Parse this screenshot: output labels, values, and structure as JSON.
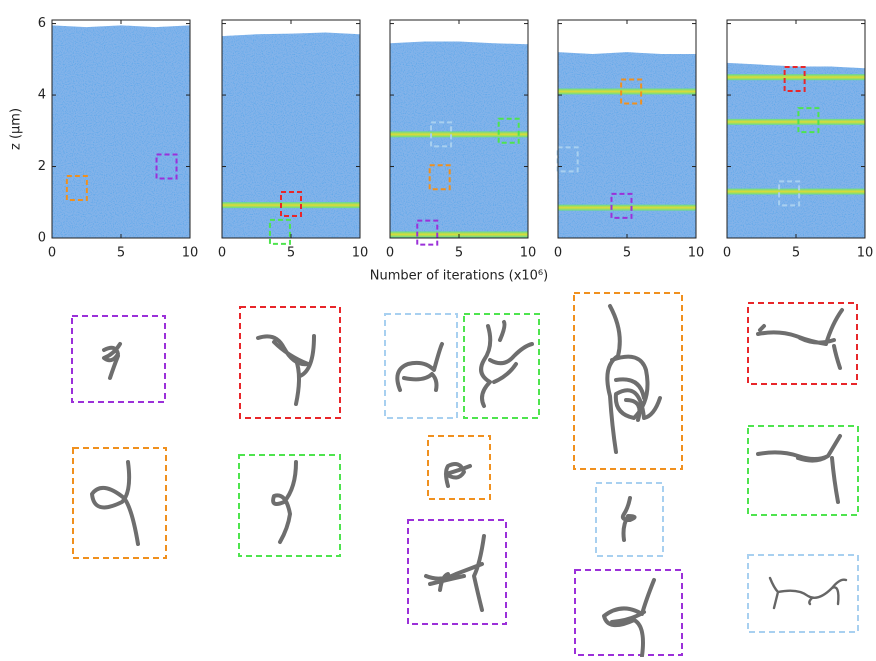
{
  "chart_data": [
    {
      "type": "area",
      "ylabel": "z (μm)",
      "x": [
        0,
        2.5,
        5,
        7.5,
        10
      ],
      "values": [
        5.95,
        5.9,
        5.95,
        5.9,
        5.95
      ],
      "color": "#1e74d8",
      "xlim": [
        0,
        10
      ],
      "ylim": [
        0,
        6.1
      ],
      "xticks": [
        0,
        5,
        10
      ],
      "yticks": [
        0,
        2,
        4,
        6
      ],
      "bands": [],
      "boxes": [
        {
          "x": 1.8,
          "y": 1.4,
          "color": "#f0901e"
        },
        {
          "x": 8.3,
          "y": 2.0,
          "color": "#9b30d9"
        }
      ]
    },
    {
      "type": "area",
      "x": [
        0,
        2.5,
        5,
        7.5,
        10
      ],
      "values": [
        5.65,
        5.7,
        5.72,
        5.75,
        5.7
      ],
      "color": "#1e74d8",
      "xlim": [
        0,
        10
      ],
      "ylim": [
        0,
        6.1
      ],
      "xticks": [
        0,
        5,
        10
      ],
      "yticks": [
        0,
        2,
        4,
        6
      ],
      "bands": [
        0.92
      ],
      "boxes": [
        {
          "x": 5.0,
          "y": 0.95,
          "color": "#e8262a"
        },
        {
          "x": 4.2,
          "y": 0.17,
          "color": "#4ee44e"
        }
      ]
    },
    {
      "type": "area",
      "xlabel": "Number of iterations (x10⁶)",
      "x": [
        0,
        2.5,
        5,
        7.5,
        10
      ],
      "values": [
        5.45,
        5.5,
        5.5,
        5.45,
        5.42
      ],
      "color": "#1e74d8",
      "xlim": [
        0,
        10
      ],
      "ylim": [
        0,
        6.1
      ],
      "xticks": [
        0,
        5,
        10
      ],
      "yticks": [
        0,
        2,
        4,
        6
      ],
      "bands": [
        0.1,
        2.9
      ],
      "boxes": [
        {
          "x": 3.7,
          "y": 2.9,
          "color": "#a8d0f0"
        },
        {
          "x": 8.6,
          "y": 3.0,
          "color": "#4ee44e"
        },
        {
          "x": 3.6,
          "y": 1.7,
          "color": "#f0901e"
        },
        {
          "x": 2.7,
          "y": 0.15,
          "color": "#9b30d9"
        }
      ]
    },
    {
      "type": "area",
      "x": [
        0,
        2.5,
        5,
        7.5,
        10
      ],
      "values": [
        5.2,
        5.15,
        5.2,
        5.15,
        5.15
      ],
      "color": "#1e74d8",
      "xlim": [
        0,
        10
      ],
      "ylim": [
        0,
        6.1
      ],
      "xticks": [
        0,
        5,
        10
      ],
      "yticks": [
        0,
        2,
        4,
        6
      ],
      "bands": [
        0.85,
        4.1
      ],
      "boxes": [
        {
          "x": 5.3,
          "y": 4.1,
          "color": "#f0901e"
        },
        {
          "x": 0.7,
          "y": 2.2,
          "color": "#a8d0f0"
        },
        {
          "x": 4.6,
          "y": 0.9,
          "color": "#9b30d9"
        }
      ]
    },
    {
      "type": "area",
      "x": [
        0,
        2.5,
        5,
        7.5,
        10
      ],
      "values": [
        4.9,
        4.85,
        4.8,
        4.8,
        4.75
      ],
      "color": "#1e74d8",
      "xlim": [
        0,
        10
      ],
      "ylim": [
        0,
        6.1
      ],
      "xticks": [
        0,
        5,
        10
      ],
      "yticks": [
        0,
        2,
        4,
        6
      ],
      "bands": [
        1.3,
        3.25,
        4.5
      ],
      "boxes": [
        {
          "x": 4.9,
          "y": 4.45,
          "color": "#e8262a"
        },
        {
          "x": 5.9,
          "y": 3.3,
          "color": "#4ee44e"
        },
        {
          "x": 4.5,
          "y": 1.25,
          "color": "#a8d0f0"
        }
      ]
    }
  ]
}
